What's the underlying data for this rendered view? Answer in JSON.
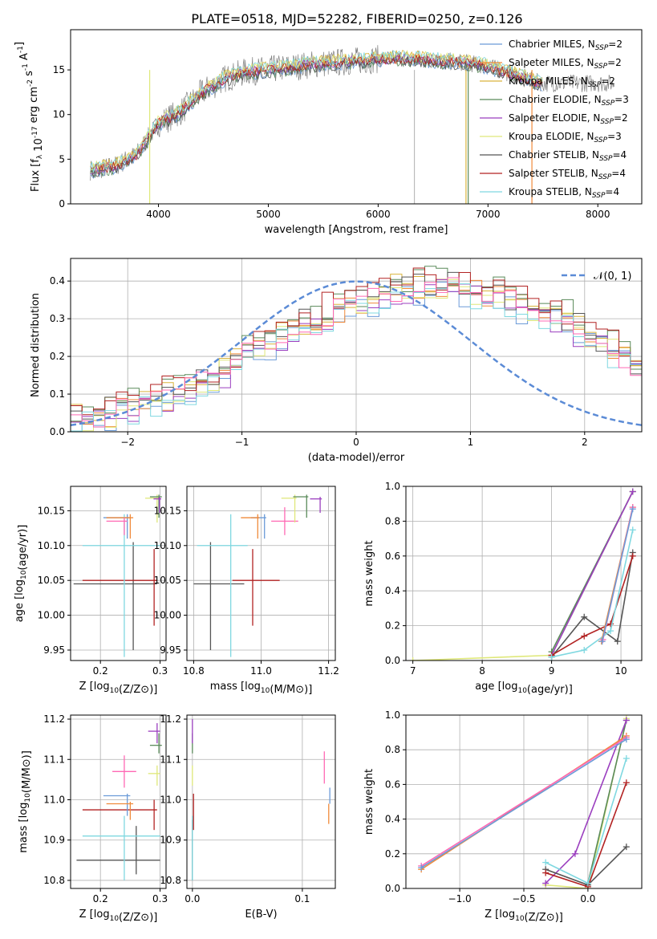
{
  "figure_title": "PLATE=0518, MJD=52282, FIBERID=0250, z=0.126",
  "legend_spectrum": [
    {
      "label": "Chabrier MILES, N",
      "sub": "SSP",
      "suffix": "=2",
      "color": "#6b9bd8"
    },
    {
      "label": "Salpeter MILES, N",
      "sub": "SSP",
      "suffix": "=2",
      "color": "#f08a3a"
    },
    {
      "label": "Kroupa MILES, N",
      "sub": "SSP",
      "suffix": "=2",
      "color": "#d9b43c"
    },
    {
      "label": "Chabrier ELODIE, N",
      "sub": "SSP",
      "suffix": "=3",
      "color": "#5a8a5a"
    },
    {
      "label": "Salpeter ELODIE, N",
      "sub": "SSP",
      "suffix": "=2",
      "color": "#9b3fbf"
    },
    {
      "label": "Kroupa ELODIE, N",
      "sub": "SSP",
      "suffix": "=3",
      "color": "#dfe87a"
    },
    {
      "label": "Chabrier STELIB, N",
      "sub": "SSP",
      "suffix": "=4",
      "color": "#555555"
    },
    {
      "label": "Salpeter STELIB, N",
      "sub": "SSP",
      "suffix": "=4",
      "color": "#b22222"
    },
    {
      "label": "Kroupa STELIB, N",
      "sub": "SSP",
      "suffix": "=4",
      "color": "#7fd8e0"
    }
  ],
  "legend_hist": {
    "label": "𝒩(0, 1)",
    "color": "#5b8bd6"
  },
  "chart_data": [
    {
      "id": "spectrum",
      "type": "line",
      "xlabel": "wavelength [Angstrom, rest frame]",
      "ylabel": "Flux [f_λ 10^-17 erg cm^-2 s^-1 A^-1]",
      "xlim": [
        3200,
        8400
      ],
      "ylim": [
        0,
        19.5
      ],
      "xticks": [
        4000,
        5000,
        6000,
        7000,
        8000
      ],
      "yticks": [
        0,
        5,
        10,
        15
      ],
      "gray_spectrum_color": "#808080",
      "model_curve": [
        [
          3400,
          3.8
        ],
        [
          3600,
          4.2
        ],
        [
          3800,
          5.5
        ],
        [
          4000,
          9.0
        ],
        [
          4200,
          10.3
        ],
        [
          4400,
          12.5
        ],
        [
          4600,
          14.0
        ],
        [
          4800,
          14.8
        ],
        [
          5000,
          15.0
        ],
        [
          5200,
          15.3
        ],
        [
          5400,
          15.6
        ],
        [
          5600,
          15.8
        ],
        [
          5800,
          16.0
        ],
        [
          6000,
          16.2
        ],
        [
          6200,
          16.3
        ],
        [
          6400,
          16.2
        ],
        [
          6600,
          16.0
        ],
        [
          6800,
          15.8
        ],
        [
          7000,
          15.4
        ],
        [
          7200,
          14.6
        ],
        [
          7400,
          13.8
        ],
        [
          7500,
          13.5
        ]
      ],
      "vertical_drops": [
        [
          3920,
          "#dfe87a"
        ],
        [
          6330,
          "#bbbbbb"
        ],
        [
          6800,
          "#d9b43c"
        ],
        [
          6820,
          "#5a8a5a"
        ],
        [
          7400,
          "#f08a3a"
        ]
      ]
    },
    {
      "id": "hist",
      "type": "step",
      "xlabel": "(data-model)/error",
      "ylabel": "Normed distribution",
      "xlim": [
        -2.5,
        2.5
      ],
      "ylim": [
        0,
        0.46
      ],
      "xticks": [
        -2,
        -1,
        0,
        1,
        2
      ],
      "yticks": [
        0.0,
        0.1,
        0.2,
        0.3,
        0.4
      ],
      "bin_edges_start": -2.5,
      "bin_width": 0.1,
      "base_distribution": [
        0.02,
        0.025,
        0.03,
        0.035,
        0.045,
        0.05,
        0.06,
        0.07,
        0.08,
        0.09,
        0.1,
        0.12,
        0.13,
        0.15,
        0.17,
        0.19,
        0.2,
        0.22,
        0.24,
        0.26,
        0.27,
        0.28,
        0.3,
        0.31,
        0.32,
        0.33,
        0.34,
        0.35,
        0.36,
        0.37,
        0.37,
        0.37,
        0.37,
        0.37,
        0.36,
        0.36,
        0.35,
        0.34,
        0.33,
        0.32,
        0.31,
        0.3,
        0.29,
        0.28,
        0.26,
        0.24,
        0.22,
        0.2,
        0.18,
        0.16
      ]
    },
    {
      "id": "age_Z",
      "type": "errorbar",
      "xlabel": "Z [log10(Z/Z⊙)]",
      "ylabel": "age  [log10(age/yr)]",
      "xlim": [
        0.15,
        0.31
      ],
      "ylim": [
        9.935,
        10.185
      ],
      "xticks": [
        0.2,
        0.3
      ],
      "yticks": [
        9.95,
        10.0,
        10.05,
        10.1,
        10.15
      ],
      "points": [
        {
          "x": 0.255,
          "y": 10.045,
          "xerr": [
            0.1,
            0.04
          ],
          "yerr": [
            0.095,
            0.06
          ],
          "color": "#555555"
        },
        {
          "x": 0.29,
          "y": 10.05,
          "xerr": [
            0.12,
            0.005
          ],
          "yerr": [
            0.065,
            0.045
          ],
          "color": "#b22222"
        },
        {
          "x": 0.24,
          "y": 10.1,
          "xerr": [
            0.07,
            0.06
          ],
          "yerr": [
            0.16,
            0.045
          ],
          "color": "#7fd8e0"
        },
        {
          "x": 0.245,
          "y": 10.14,
          "xerr": [
            0.04,
            0.005
          ],
          "yerr": [
            0.03,
            0.005
          ],
          "color": "#6b9bd8"
        },
        {
          "x": 0.25,
          "y": 10.14,
          "xerr": [
            0.04,
            0.005
          ],
          "yerr": [
            0.03,
            0.005
          ],
          "color": "#f08a3a"
        },
        {
          "x": 0.24,
          "y": 10.135,
          "xerr": [
            0.03,
            0.005
          ],
          "yerr": [
            0.02,
            0.005
          ],
          "color": "#ff69b4"
        },
        {
          "x": 0.295,
          "y": 10.168,
          "xerr": [
            0.02,
            0.005
          ],
          "yerr": [
            0.035,
            0.005
          ],
          "color": "#dfe87a"
        },
        {
          "x": 0.298,
          "y": 10.17,
          "xerr": [
            0.015,
            0.005
          ],
          "yerr": [
            0.03,
            0.003
          ],
          "color": "#5a8a5a"
        },
        {
          "x": 0.299,
          "y": 10.167,
          "xerr": [
            0.01,
            0.003
          ],
          "yerr": [
            0.02,
            0.003
          ],
          "color": "#9b3fbf"
        }
      ]
    },
    {
      "id": "age_mass",
      "type": "errorbar",
      "xlabel": "mass [log10(M/M⊙)]",
      "ylabel": "",
      "xlim": [
        10.78,
        11.22
      ],
      "ylim": [
        9.935,
        10.185
      ],
      "xticks": [
        10.8,
        11.0,
        11.2
      ],
      "yticks": [
        9.95,
        10.0,
        10.05,
        10.1,
        10.15
      ],
      "points": [
        {
          "x": 10.85,
          "y": 10.045,
          "xerr": [
            0.05,
            0.1
          ],
          "yerr": [
            0.095,
            0.06
          ],
          "color": "#555555"
        },
        {
          "x": 10.975,
          "y": 10.05,
          "xerr": [
            0.06,
            0.08
          ],
          "yerr": [
            0.065,
            0.045
          ],
          "color": "#b22222"
        },
        {
          "x": 10.91,
          "y": 10.1,
          "xerr": [
            0.1,
            0.05
          ],
          "yerr": [
            0.16,
            0.045
          ],
          "color": "#7fd8e0"
        },
        {
          "x": 11.01,
          "y": 10.14,
          "xerr": [
            0.04,
            0.005
          ],
          "yerr": [
            0.03,
            0.005
          ],
          "color": "#6b9bd8"
        },
        {
          "x": 10.99,
          "y": 10.14,
          "xerr": [
            0.05,
            0.005
          ],
          "yerr": [
            0.03,
            0.005
          ],
          "color": "#f08a3a"
        },
        {
          "x": 11.07,
          "y": 10.135,
          "xerr": [
            0.04,
            0.04
          ],
          "yerr": [
            0.02,
            0.02
          ],
          "color": "#ff69b4"
        },
        {
          "x": 11.1,
          "y": 10.168,
          "xerr": [
            0.04,
            0.005
          ],
          "yerr": [
            0.035,
            0.005
          ],
          "color": "#dfe87a"
        },
        {
          "x": 11.135,
          "y": 10.17,
          "xerr": [
            0.04,
            0.005
          ],
          "yerr": [
            0.03,
            0.003
          ],
          "color": "#5a8a5a"
        },
        {
          "x": 11.175,
          "y": 10.167,
          "xerr": [
            0.03,
            0.005
          ],
          "yerr": [
            0.02,
            0.003
          ],
          "color": "#9b3fbf"
        }
      ]
    },
    {
      "id": "weight_age",
      "type": "line",
      "xlabel": "age  [log10(age/yr)]",
      "ylabel": "mass weight",
      "xlim": [
        6.9,
        10.3
      ],
      "ylim": [
        0,
        1.0
      ],
      "xticks": [
        7,
        8,
        9,
        10
      ],
      "yticks": [
        0.0,
        0.2,
        0.4,
        0.6,
        0.8,
        1.0
      ],
      "series": [
        {
          "color": "#dfe87a",
          "points": [
            [
              7.0,
              0.0
            ],
            [
              9.0,
              0.03
            ],
            [
              10.17,
              0.97
            ]
          ]
        },
        {
          "color": "#5a8a5a",
          "points": [
            [
              9.0,
              0.05
            ],
            [
              10.17,
              0.97
            ]
          ]
        },
        {
          "color": "#9b3fbf",
          "points": [
            [
              9.0,
              0.03
            ],
            [
              10.17,
              0.97
            ]
          ]
        },
        {
          "color": "#555555",
          "points": [
            [
              9.0,
              0.02
            ],
            [
              9.47,
              0.25
            ],
            [
              9.95,
              0.11
            ],
            [
              10.17,
              0.62
            ]
          ]
        },
        {
          "color": "#b22222",
          "points": [
            [
              9.0,
              0.03
            ],
            [
              9.47,
              0.14
            ],
            [
              9.85,
              0.21
            ],
            [
              10.17,
              0.6
            ]
          ]
        },
        {
          "color": "#7fd8e0",
          "points": [
            [
              9.0,
              0.02
            ],
            [
              9.47,
              0.06
            ],
            [
              9.85,
              0.17
            ],
            [
              10.17,
              0.75
            ]
          ]
        },
        {
          "color": "#f08a3a",
          "points": [
            [
              9.72,
              0.11
            ],
            [
              10.17,
              0.88
            ]
          ]
        },
        {
          "color": "#ff69b4",
          "points": [
            [
              9.74,
              0.12
            ],
            [
              10.17,
              0.88
            ]
          ]
        },
        {
          "color": "#6b9bd8",
          "points": [
            [
              9.73,
              0.11
            ],
            [
              10.17,
              0.87
            ]
          ]
        }
      ]
    },
    {
      "id": "mass_Z",
      "type": "errorbar",
      "xlabel": "Z [log10(Z/Z⊙)]",
      "ylabel": "mass [log10(M/M⊙)]",
      "xlim": [
        0.15,
        0.31
      ],
      "ylim": [
        10.78,
        11.21
      ],
      "xticks": [
        0.2,
        0.3
      ],
      "yticks": [
        10.8,
        10.9,
        11.0,
        11.1,
        11.2
      ],
      "points": [
        {
          "x": 0.26,
          "y": 10.85,
          "xerr": [
            0.1,
            0.04
          ],
          "yerr": [
            0.035,
            0.085
          ],
          "color": "#555555"
        },
        {
          "x": 0.29,
          "y": 10.975,
          "xerr": [
            0.12,
            0.005
          ],
          "yerr": [
            0.05,
            0.025
          ],
          "color": "#b22222"
        },
        {
          "x": 0.24,
          "y": 10.91,
          "xerr": [
            0.07,
            0.06
          ],
          "yerr": [
            0.11,
            0.05
          ],
          "color": "#7fd8e0"
        },
        {
          "x": 0.245,
          "y": 11.01,
          "xerr": [
            0.04,
            0.005
          ],
          "yerr": [
            0.05,
            0.005
          ],
          "color": "#6b9bd8"
        },
        {
          "x": 0.25,
          "y": 10.99,
          "xerr": [
            0.04,
            0.005
          ],
          "yerr": [
            0.04,
            0.005
          ],
          "color": "#f08a3a"
        },
        {
          "x": 0.24,
          "y": 11.07,
          "xerr": [
            0.02,
            0.02
          ],
          "yerr": [
            0.04,
            0.04
          ],
          "color": "#ff69b4"
        },
        {
          "x": 0.295,
          "y": 11.065,
          "xerr": [
            0.015,
            0.005
          ],
          "yerr": [
            0.03,
            0.02
          ],
          "color": "#dfe87a"
        },
        {
          "x": 0.298,
          "y": 11.135,
          "xerr": [
            0.015,
            0.005
          ],
          "yerr": [
            0.02,
            0.03
          ],
          "color": "#5a8a5a"
        },
        {
          "x": 0.295,
          "y": 11.17,
          "xerr": [
            0.015,
            0.005
          ],
          "yerr": [
            0.03,
            0.02
          ],
          "color": "#9b3fbf"
        }
      ]
    },
    {
      "id": "mass_EBV",
      "type": "errorbar",
      "xlabel": "E(B-V)",
      "ylabel": "",
      "xlim": [
        -0.005,
        0.13
      ],
      "ylim": [
        10.78,
        11.21
      ],
      "xticks": [
        0.0,
        0.1
      ],
      "yticks": [
        10.8,
        10.9,
        11.0,
        11.1,
        11.2
      ],
      "points": [
        {
          "x": 0.0,
          "y": 10.85,
          "xerr": [
            0,
            0
          ],
          "yerr": [
            0.05,
            0.1
          ],
          "color": "#555555"
        },
        {
          "x": 0.001,
          "y": 10.975,
          "xerr": [
            0,
            0
          ],
          "yerr": [
            0.05,
            0.04
          ],
          "color": "#b22222"
        },
        {
          "x": 0.0,
          "y": 10.91,
          "xerr": [
            0,
            0
          ],
          "yerr": [
            0.11,
            0.05
          ],
          "color": "#7fd8e0"
        },
        {
          "x": 0.0,
          "y": 11.065,
          "xerr": [
            0,
            0
          ],
          "yerr": [
            0.03,
            0.02
          ],
          "color": "#dfe87a"
        },
        {
          "x": 0.0,
          "y": 11.135,
          "xerr": [
            0,
            0
          ],
          "yerr": [
            0.02,
            0.03
          ],
          "color": "#5a8a5a"
        },
        {
          "x": 0.0,
          "y": 11.17,
          "xerr": [
            0,
            0
          ],
          "yerr": [
            0.03,
            0.03
          ],
          "color": "#9b3fbf"
        },
        {
          "x": 0.125,
          "y": 11.01,
          "xerr": [
            0,
            0
          ],
          "yerr": [
            0.02,
            0.02
          ],
          "color": "#6b9bd8"
        },
        {
          "x": 0.124,
          "y": 10.97,
          "xerr": [
            0,
            0
          ],
          "yerr": [
            0.03,
            0.02
          ],
          "color": "#f08a3a"
        },
        {
          "x": 0.12,
          "y": 11.07,
          "xerr": [
            0,
            0
          ],
          "yerr": [
            0.03,
            0.05
          ],
          "color": "#ff69b4"
        }
      ]
    },
    {
      "id": "weight_Z",
      "type": "line",
      "xlabel": "Z [log10(Z/Z⊙)]",
      "ylabel": "mass weight",
      "xlim": [
        -1.42,
        0.42
      ],
      "ylim": [
        0,
        1.0
      ],
      "xticks": [
        -1.0,
        -0.5,
        0.0
      ],
      "yticks": [
        0.0,
        0.2,
        0.4,
        0.6,
        0.8,
        1.0
      ],
      "series": [
        {
          "color": "#dfe87a",
          "points": [
            [
              -0.33,
              0.02
            ],
            [
              0.0,
              0.0
            ],
            [
              0.3,
              0.98
            ]
          ]
        },
        {
          "color": "#5a8a5a",
          "points": [
            [
              0.0,
              0.03
            ],
            [
              0.3,
              0.97
            ]
          ]
        },
        {
          "color": "#9b3fbf",
          "points": [
            [
              -0.33,
              0.03
            ],
            [
              -0.1,
              0.2
            ],
            [
              0.3,
              0.97
            ]
          ]
        },
        {
          "color": "#555555",
          "points": [
            [
              -0.33,
              0.11
            ],
            [
              0.0,
              0.02
            ],
            [
              0.3,
              0.24
            ]
          ]
        },
        {
          "color": "#b22222",
          "points": [
            [
              -0.33,
              0.09
            ],
            [
              0.0,
              0.01
            ],
            [
              0.3,
              0.61
            ]
          ]
        },
        {
          "color": "#7fd8e0",
          "points": [
            [
              -0.33,
              0.15
            ],
            [
              0.0,
              0.03
            ],
            [
              0.3,
              0.75
            ]
          ]
        },
        {
          "color": "#f08a3a",
          "points": [
            [
              -1.3,
              0.11
            ],
            [
              0.3,
              0.88
            ]
          ]
        },
        {
          "color": "#ff69b4",
          "points": [
            [
              -1.3,
              0.13
            ],
            [
              0.3,
              0.87
            ]
          ]
        },
        {
          "color": "#6b9bd8",
          "points": [
            [
              -1.3,
              0.12
            ],
            [
              0.3,
              0.86
            ]
          ]
        }
      ]
    }
  ]
}
